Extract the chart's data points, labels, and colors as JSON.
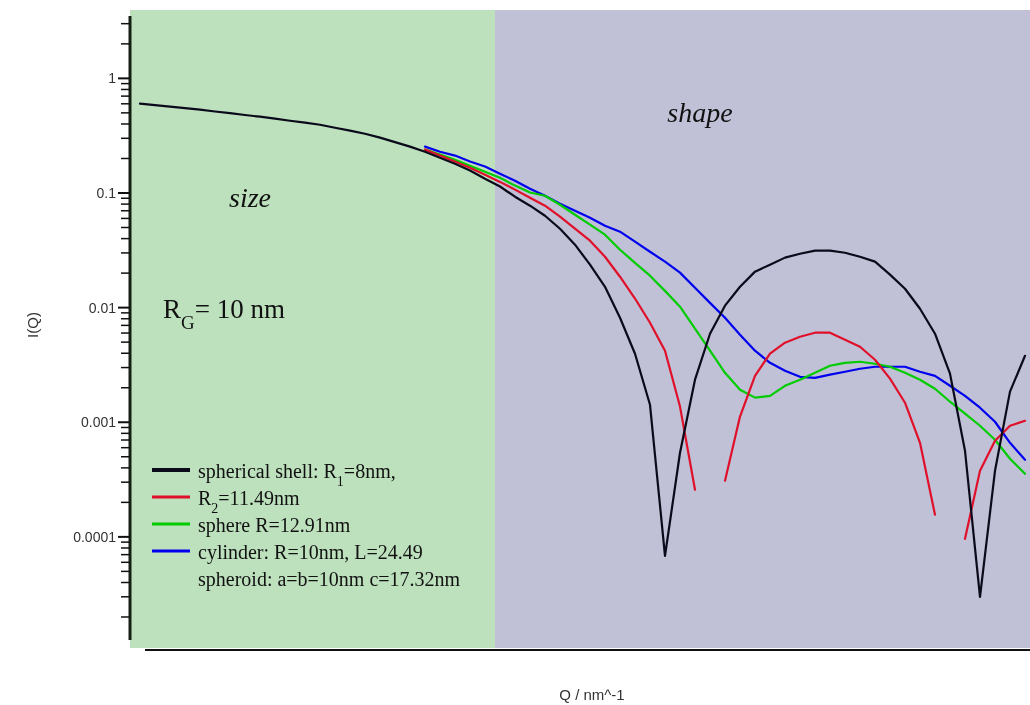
{
  "chart_data": {
    "type": "line",
    "xlabel": "Q / nm^-1",
    "ylabel": "I(Q)",
    "categories": [
      null,
      null,
      null,
      null,
      null,
      null,
      null,
      null,
      null,
      null,
      null,
      null,
      null,
      null,
      null,
      null,
      null,
      null,
      null,
      null,
      null,
      null,
      null,
      null,
      null,
      null,
      null,
      null,
      null,
      null,
      null,
      null,
      null,
      null,
      null,
      null,
      null,
      null,
      null,
      null,
      null,
      null,
      null,
      null,
      null,
      null,
      null,
      null,
      null,
      null,
      null,
      null,
      null,
      null,
      null,
      null,
      null,
      null,
      null,
      null
    ],
    "ylim": [
      1.26e-05,
      3.5
    ],
    "yticks": [
      {
        "value": 2e-05,
        "label": null
      },
      {
        "value": 3e-05,
        "label": null
      },
      {
        "value": 4e-05,
        "label": null
      },
      {
        "value": 5e-05,
        "label": null
      },
      {
        "value": 6e-05,
        "label": null
      },
      {
        "value": 7e-05,
        "label": null
      },
      {
        "value": 8e-05,
        "label": null
      },
      {
        "value": 9e-05,
        "label": null
      },
      {
        "value": 0.0001,
        "label": "0.0001"
      },
      {
        "value": 0.0002,
        "label": null
      },
      {
        "value": 0.0003,
        "label": null
      },
      {
        "value": 0.0004,
        "label": null
      },
      {
        "value": 0.0005,
        "label": null
      },
      {
        "value": 0.0006,
        "label": null
      },
      {
        "value": 0.0007,
        "label": null
      },
      {
        "value": 0.0008,
        "label": null
      },
      {
        "value": 0.0009,
        "label": null
      },
      {
        "value": 0.001,
        "label": "0.001"
      },
      {
        "value": 0.002,
        "label": null
      },
      {
        "value": 0.003,
        "label": null
      },
      {
        "value": 0.004,
        "label": null
      },
      {
        "value": 0.005,
        "label": null
      },
      {
        "value": 0.006,
        "label": null
      },
      {
        "value": 0.007,
        "label": null
      },
      {
        "value": 0.008,
        "label": null
      },
      {
        "value": 0.009,
        "label": null
      },
      {
        "value": 0.01,
        "label": "0.01"
      },
      {
        "value": 0.02,
        "label": null
      },
      {
        "value": 0.03,
        "label": null
      },
      {
        "value": 0.04,
        "label": null
      },
      {
        "value": 0.05,
        "label": null
      },
      {
        "value": 0.06,
        "label": null
      },
      {
        "value": 0.07,
        "label": null
      },
      {
        "value": 0.08,
        "label": null
      },
      {
        "value": 0.09,
        "label": null
      },
      {
        "value": 0.1,
        "label": "0.1"
      },
      {
        "value": 0.2,
        "label": null
      },
      {
        "value": 0.3,
        "label": null
      },
      {
        "value": 0.4,
        "label": null
      },
      {
        "value": 0.5,
        "label": null
      },
      {
        "value": 0.6,
        "label": null
      },
      {
        "value": 0.7,
        "label": null
      },
      {
        "value": 0.8,
        "label": null
      },
      {
        "value": 0.9,
        "label": null
      },
      {
        "value": 1,
        "label": "1"
      },
      {
        "value": 2,
        "label": null
      },
      {
        "value": 3,
        "label": null
      }
    ],
    "log": "y",
    "tick_labels": "y",
    "legend": "bottom left",
    "annotations": [
      "size",
      "shape",
      "R$_{G}$= 10 nm",
      "spheroid: a=b=10nm c=17.32nm"
    ],
    "series": [
      {
        "name": "spherical shell: R$_{1}$=8nm,",
        "color": "#0a0a1a",
        "values": [
          0.601,
          0.584,
          0.566,
          0.55,
          0.533,
          0.514,
          0.497,
          0.479,
          0.463,
          0.445,
          0.427,
          0.411,
          0.394,
          0.371,
          0.35,
          0.329,
          0.304,
          0.278,
          0.254,
          0.229,
          0.203,
          0.18,
          0.157,
          0.133,
          0.114,
          0.0928,
          0.0775,
          0.0633,
          0.0488,
          0.0354,
          0.0237,
          0.0152,
          0.00816,
          0.00396,
          0.00142,
          6.84e-05,
          0.000542,
          0.00235,
          0.00592,
          0.0104,
          0.0152,
          0.0206,
          0.0237,
          0.0273,
          0.0295,
          0.0314,
          0.0314,
          0.0301,
          0.0278,
          0.0252,
          0.0194,
          0.0146,
          0.00978,
          0.00592,
          0.00265,
          0.000564,
          3e-05,
          0.000377,
          0.00185,
          0.0038
        ]
      },
      {
        "name": "R$_{2}$=11.49nm",
        "color": "#e0102a",
        "values": [
          null,
          null,
          null,
          null,
          null,
          null,
          null,
          null,
          null,
          null,
          null,
          null,
          null,
          null,
          null,
          null,
          null,
          null,
          null,
          0.239,
          0.212,
          0.188,
          0.166,
          0.144,
          0.125,
          0.107,
          0.091,
          0.0775,
          0.0621,
          0.0488,
          0.0384,
          0.0278,
          0.0186,
          0.012,
          0.00738,
          0.00421,
          0.00137,
          0.000258,
          null,
          0.000309,
          0.00112,
          0.00254,
          0.00396,
          0.00494,
          0.00557,
          0.00604,
          0.00604,
          0.00525,
          0.00456,
          0.00351,
          0.0024,
          0.00148,
          0.000662,
          0.000156,
          null,
          9.62e-05,
          0.000377,
          0.00069,
          0.000932,
          0.00103
        ]
      },
      {
        "name": "sphere R=12.91nm",
        "color": "#00cc00",
        "values": [
          null,
          null,
          null,
          null,
          null,
          null,
          null,
          null,
          null,
          null,
          null,
          null,
          null,
          null,
          null,
          null,
          null,
          null,
          null,
          0.239,
          0.216,
          0.195,
          0.173,
          0.153,
          0.136,
          0.116,
          0.101,
          0.0947,
          0.079,
          0.0646,
          0.0529,
          0.0433,
          0.032,
          0.0246,
          0.019,
          0.014,
          0.0102,
          0.00655,
          0.00421,
          0.0027,
          0.00192,
          0.00164,
          0.0017,
          0.00208,
          0.00235,
          0.0027,
          0.00311,
          0.0033,
          0.00337,
          0.00324,
          0.00305,
          0.0027,
          0.00235,
          0.00196,
          0.00151,
          0.00119,
          0.000932,
          0.000704,
          0.00048,
          0.000355
        ]
      },
      {
        "name": "cylinder: R=10nm, L=24.49",
        "color": "#0000ee",
        "values": [
          null,
          null,
          null,
          null,
          null,
          null,
          null,
          null,
          null,
          null,
          null,
          null,
          null,
          null,
          null,
          null,
          null,
          null,
          null,
          0.254,
          0.229,
          0.212,
          0.188,
          0.17,
          0.147,
          0.128,
          0.109,
          0.0947,
          0.0806,
          0.0701,
          0.0609,
          0.0518,
          0.046,
          0.0376,
          0.0307,
          0.0252,
          0.0202,
          0.0149,
          0.011,
          0.00816,
          0.0058,
          0.00421,
          0.0033,
          0.00281,
          0.00249,
          0.00244,
          0.0026,
          0.00276,
          0.00293,
          0.00305,
          0.00305,
          0.00305,
          0.00276,
          0.00254,
          0.00208,
          0.0017,
          0.00134,
          0.00101,
          0.000662,
          0.000471
        ]
      }
    ]
  }
}
